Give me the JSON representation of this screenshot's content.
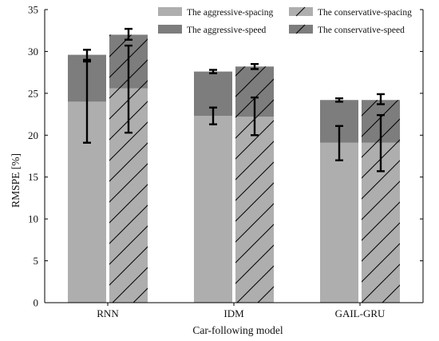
{
  "chart_data": {
    "type": "bar",
    "stacked": true,
    "categories": [
      "RNN",
      "IDM",
      "GAIL-GRU"
    ],
    "xlabel": "Car-following model",
    "ylabel": "RMSPE [%]",
    "ylim": [
      0,
      35
    ],
    "yticks": [
      0,
      5,
      10,
      15,
      20,
      25,
      30,
      35
    ],
    "grid": false,
    "legend_position": "top-right",
    "groups": [
      {
        "name": "The aggressive",
        "hatched": false,
        "spacing": [
          24.0,
          22.3,
          19.1
        ],
        "speed_total": [
          29.6,
          27.6,
          24.2
        ],
        "spacing_error": [
          [
            19.1,
            29.0
          ],
          [
            21.3,
            23.3
          ],
          [
            17.0,
            21.1
          ]
        ],
        "speed_error": [
          [
            28.8,
            30.2
          ],
          [
            27.4,
            27.8
          ],
          [
            24.0,
            24.4
          ]
        ]
      },
      {
        "name": "The conservative",
        "hatched": true,
        "spacing": [
          25.6,
          22.2,
          19.1
        ],
        "speed_total": [
          32.0,
          28.2,
          24.2
        ],
        "spacing_error": [
          [
            20.3,
            30.7
          ],
          [
            20.0,
            24.5
          ],
          [
            15.7,
            22.4
          ]
        ],
        "speed_error": [
          [
            31.4,
            32.7
          ],
          [
            27.9,
            28.5
          ],
          [
            23.7,
            24.9
          ]
        ]
      }
    ],
    "legend": [
      {
        "label": "The aggressive-spacing",
        "color": "#aeaeae",
        "hatched": false
      },
      {
        "label": "The conservative-spacing",
        "color": "#aeaeae",
        "hatched": true
      },
      {
        "label": "The aggressive-speed",
        "color": "#7d7d7d",
        "hatched": false
      },
      {
        "label": "The conservative-speed",
        "color": "#7d7d7d",
        "hatched": true
      }
    ],
    "colors": {
      "spacing": "#aeaeae",
      "speed": "#7d7d7d",
      "error_bar": "#000000",
      "axis": "#000000"
    }
  }
}
